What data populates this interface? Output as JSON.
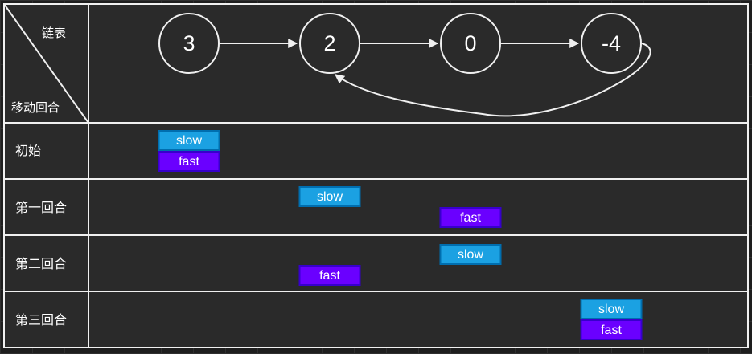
{
  "header": {
    "list_label": "链表",
    "rounds_label": "移动回合"
  },
  "linked_list": {
    "nodes": [
      "3",
      "2",
      "0",
      "-4"
    ],
    "cycle_from": 3,
    "cycle_to": 1
  },
  "pointer_labels": {
    "slow": "slow",
    "fast": "fast"
  },
  "rounds": [
    {
      "label": "初始",
      "slow": 0,
      "fast": 0
    },
    {
      "label": "第一回合",
      "slow": 1,
      "fast": 2
    },
    {
      "label": "第二回合",
      "slow": 2,
      "fast": 1
    },
    {
      "label": "第三回合",
      "slow": 3,
      "fast": 3
    }
  ],
  "colors": {
    "slow": "#1ba1e2",
    "slow_border": "#006eaf",
    "fast": "#6a00ff",
    "fast_border": "#3700cc"
  }
}
